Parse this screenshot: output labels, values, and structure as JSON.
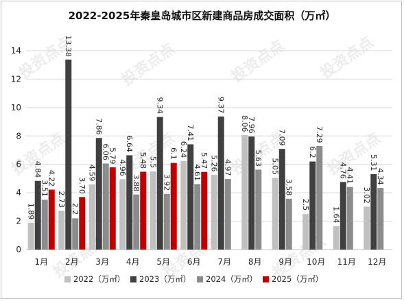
{
  "chart_data": {
    "type": "bar",
    "title": "2022-2025年秦皇岛城市区新建商品房成交面积（万㎡）",
    "categories": [
      "1月",
      "2月",
      "3月",
      "4月",
      "5月",
      "6月",
      "7月",
      "8月",
      "9月",
      "10月",
      "11月",
      "12月"
    ],
    "ylim": [
      0,
      14
    ],
    "yticks": [
      0,
      2,
      4,
      6,
      8,
      10,
      12,
      14
    ],
    "grid": true,
    "legend_position": "bottom",
    "series": [
      {
        "name": "2022（万㎡）",
        "color": "#c0c0c0",
        "values": [
          1.89,
          2.73,
          4.59,
          4.96,
          5.5,
          6.24,
          5.26,
          8.06,
          5.05,
          2.5,
          1.64,
          3.02
        ],
        "labels": [
          "1.89",
          "2.73",
          "4.59",
          "4.96",
          "5.5",
          "6.24",
          "5.26",
          "8.06",
          "5.05",
          "2.5",
          "1.64",
          "3.02"
        ]
      },
      {
        "name": "2023（万㎡）",
        "color": "#404040",
        "values": [
          4.84,
          13.38,
          7.86,
          6.64,
          9.34,
          7.41,
          9.37,
          7.96,
          7.09,
          6.2,
          4.76,
          5.31
        ],
        "labels": [
          "4.84",
          "13.38",
          "7.86",
          "6.64",
          "9.34",
          "7.41",
          "9.37",
          "7.96",
          "7.09",
          "6.2",
          "4.76",
          "5.31"
        ]
      },
      {
        "name": "2024（万㎡）",
        "color": "#8c8c8c",
        "values": [
          3.51,
          2.2,
          6.06,
          3.88,
          3.92,
          4.61,
          4.97,
          5.63,
          3.58,
          7.29,
          4.41,
          4.34
        ],
        "labels": [
          "3.51",
          "2.2",
          "6.06",
          "3.88",
          "3.92",
          "4.61",
          "4.97",
          "5.63",
          "3.58",
          "7.29",
          "4.41",
          "4.34"
        ]
      },
      {
        "name": "2025（万㎡）",
        "color": "#c00000",
        "values": [
          4.22,
          3.7,
          5.79,
          5.48,
          6.1,
          5.47,
          null,
          null,
          null,
          null,
          null,
          null
        ],
        "labels": [
          "4.22",
          "3.70",
          "5.79",
          "5.48",
          "6.1",
          "5.47",
          null,
          null,
          null,
          null,
          null,
          null
        ]
      }
    ],
    "watermark": "投资点点"
  }
}
